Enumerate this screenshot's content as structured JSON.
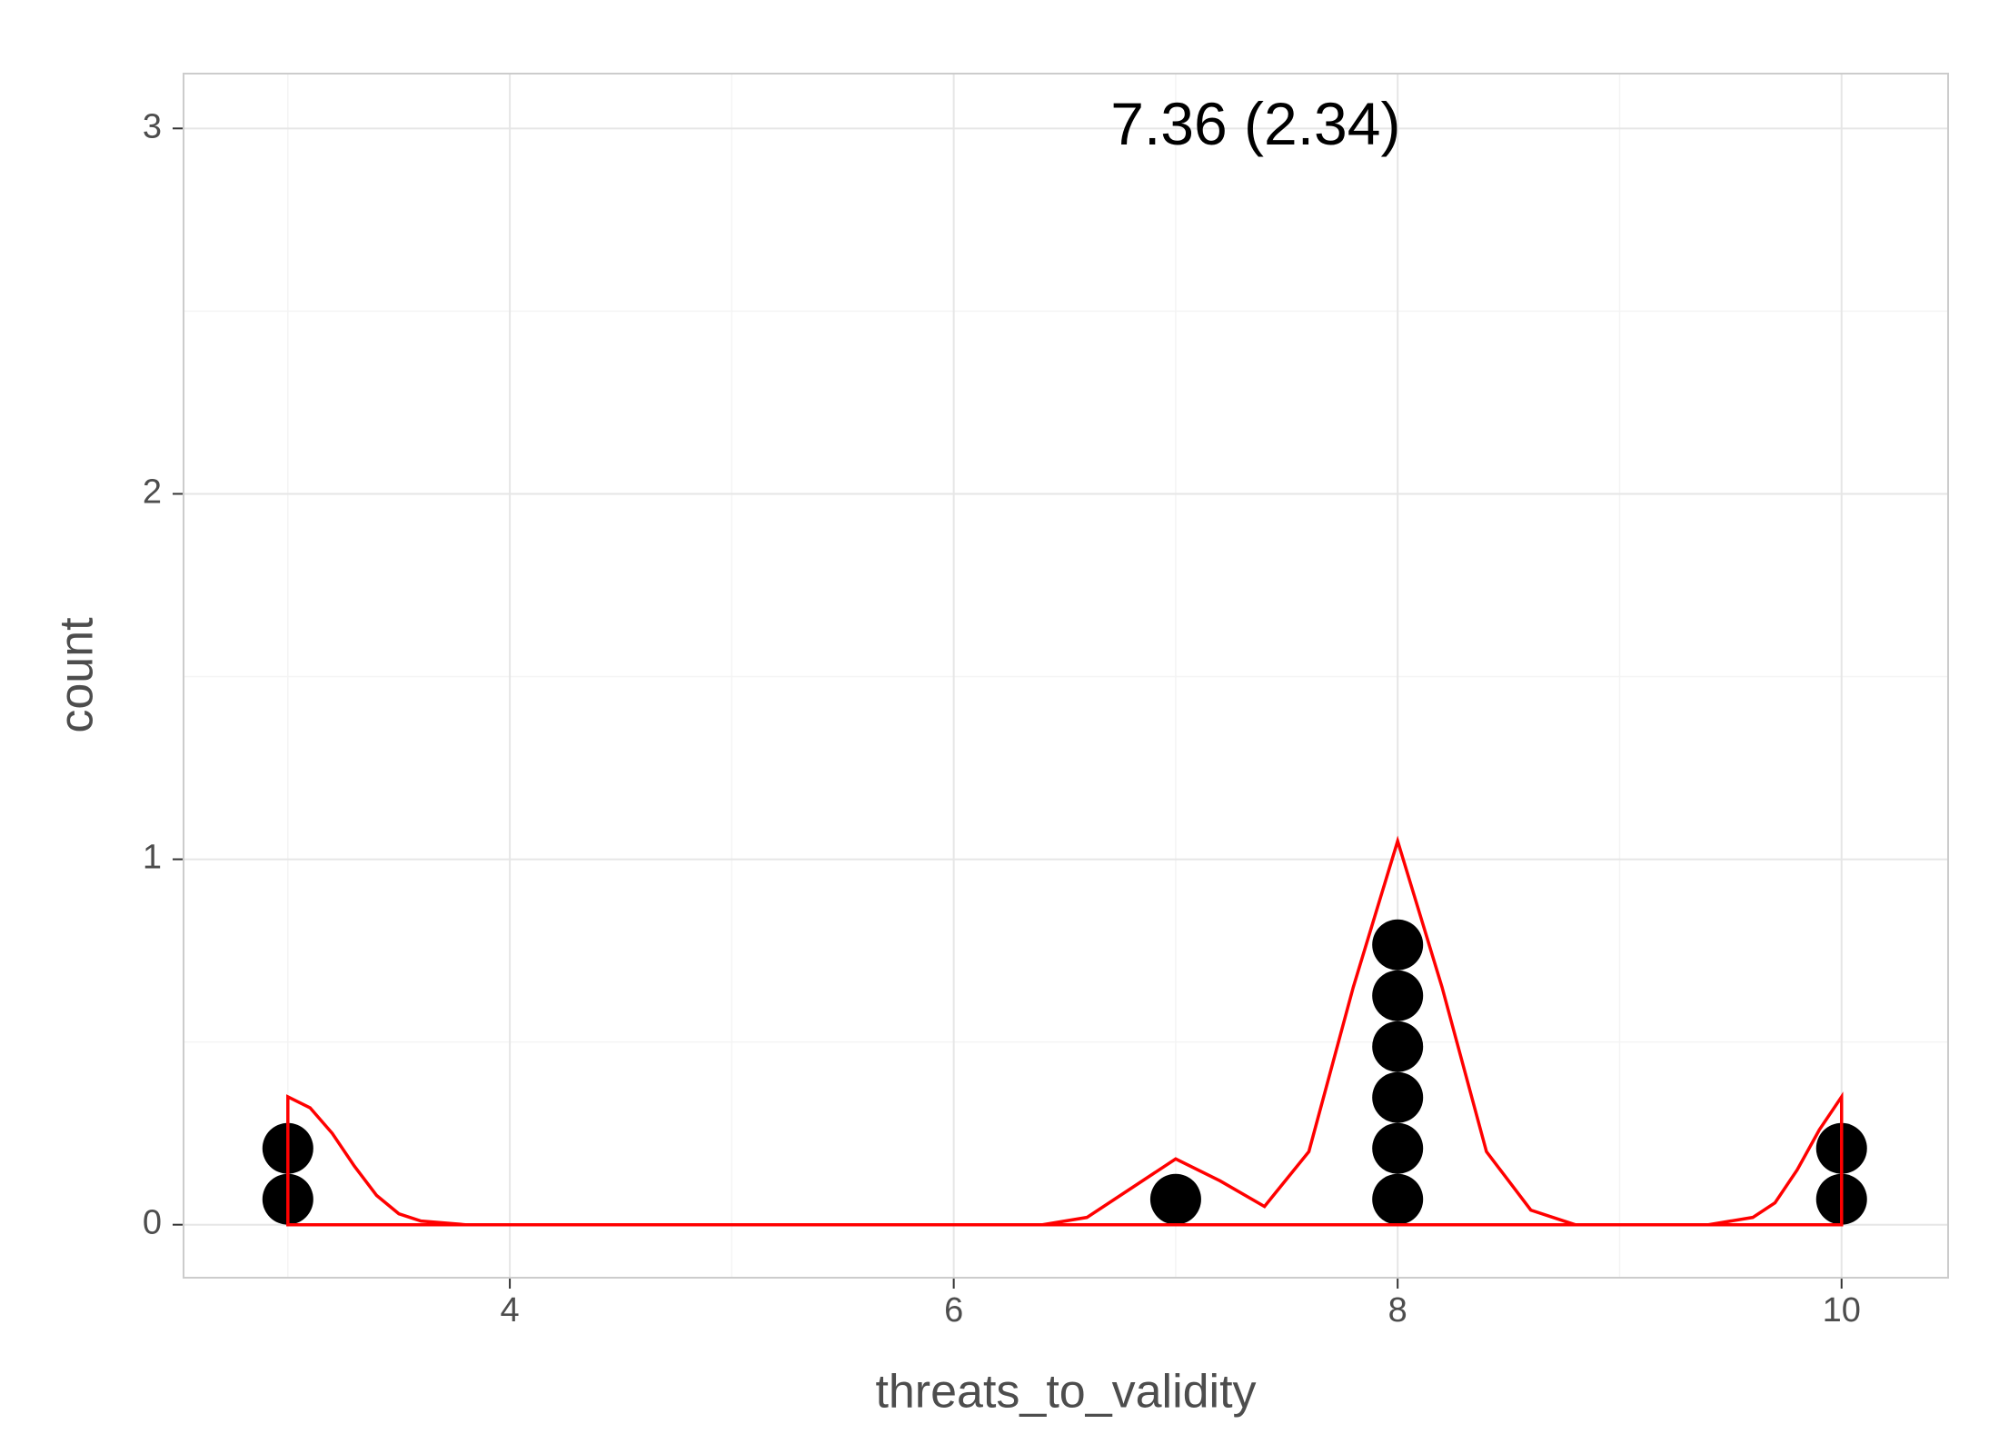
{
  "chart_data": {
    "type": "dotplot",
    "annotation": {
      "text": "7.36 (2.34)",
      "x": 7.36,
      "y": 3
    },
    "x_label": "threats_to_validity",
    "y_label": "count",
    "x": [
      3,
      3,
      7,
      8,
      8,
      8,
      8,
      8,
      8,
      10,
      10
    ],
    "color": "#000000",
    "density": {
      "color": "#ff0000",
      "x": [
        3,
        3,
        3.1,
        3.2,
        3.3,
        3.4,
        3.5,
        3.6,
        3.8,
        6.4,
        6.6,
        6.8,
        7,
        7.2,
        7.4,
        7.6,
        7.8,
        8,
        8.2,
        8.4,
        8.6,
        8.8,
        9.4,
        9.6,
        9.7,
        9.8,
        9.9,
        10,
        10
      ],
      "y": [
        0,
        0.35,
        0.32,
        0.25,
        0.16,
        0.08,
        0.03,
        0.01,
        0,
        0,
        0.02,
        0.1,
        0.18,
        0.12,
        0.05,
        0.2,
        0.65,
        1.05,
        0.65,
        0.2,
        0.04,
        0,
        0,
        0.02,
        0.06,
        0.15,
        0.26,
        0.35,
        0
      ]
    },
    "xlim": [
      2.53,
      10.48
    ],
    "ylim": [
      -0.145,
      3.15
    ],
    "xticks": [
      4,
      6,
      8,
      10
    ],
    "yticks": [
      0,
      1,
      2,
      3
    ],
    "xminor": [
      3,
      5,
      7,
      9
    ],
    "yminor": [
      0.5,
      1.5,
      2.5
    ],
    "grid": true
  }
}
